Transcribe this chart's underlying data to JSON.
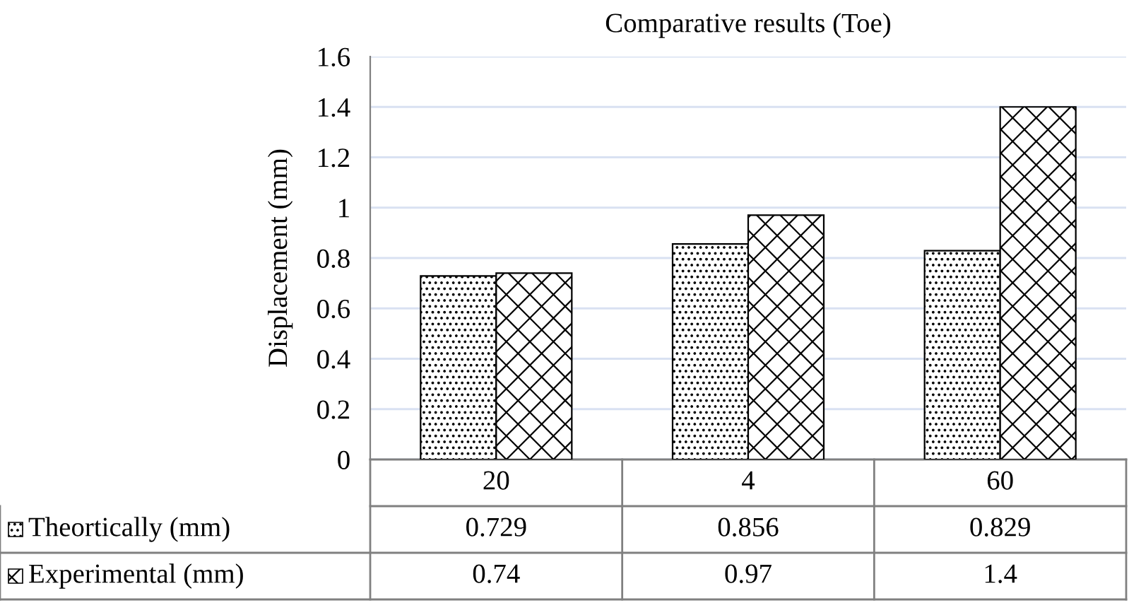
{
  "chart_data": {
    "type": "bar",
    "title": "Comparative results (Toe)",
    "ylabel": "Displacement (mm)",
    "categories": [
      "20",
      "4",
      "60"
    ],
    "series": [
      {
        "name": "Theortically (mm)",
        "color": "#000000",
        "values": [
          0.729,
          0.856,
          0.829
        ]
      },
      {
        "name": "Experimental (mm)",
        "color": "#000000",
        "values": [
          0.74,
          0.97,
          1.4
        ]
      }
    ],
    "ylim": [
      0,
      1.6
    ],
    "yticks": [
      0,
      0.2,
      0.4,
      0.6,
      0.8,
      1,
      1.2,
      1.4,
      1.6
    ],
    "grid": "y",
    "legend": "bottom",
    "data_labels": true
  }
}
